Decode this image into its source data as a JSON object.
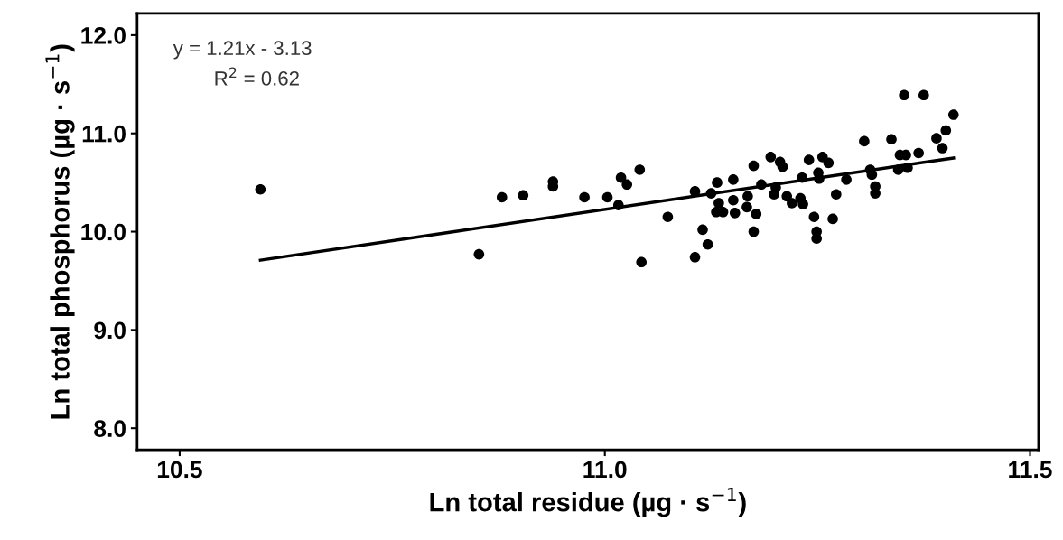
{
  "chart_data": {
    "type": "scatter",
    "xlabel": "Ln total residue (µg · s$^{−1}$)",
    "ylabel": "Ln total phosphorus (µg · s$^{−1}$)",
    "annotations": [
      "y = 1.21x - 3.13",
      "R$^{2}$ = 0.62"
    ],
    "xlim": [
      10.45,
      11.51
    ],
    "ylim": [
      7.78,
      12.22
    ],
    "xticks": [
      {
        "value": 10.5,
        "label": "10.5"
      },
      {
        "value": 11.0,
        "label": "11.0"
      },
      {
        "value": 11.5,
        "label": "11.5"
      }
    ],
    "yticks": [
      {
        "value": 8,
        "label": "8.0"
      },
      {
        "value": 9,
        "label": "9.0"
      },
      {
        "value": 10,
        "label": "10.0"
      },
      {
        "value": 11,
        "label": "11.0"
      },
      {
        "value": 12,
        "label": "12.0"
      }
    ],
    "grid": false,
    "legend": false,
    "marker": "circle",
    "series": [
      {
        "color": "#000000",
        "x": [
          10.595,
          10.852,
          10.879,
          10.904,
          10.939,
          10.939,
          10.976,
          11.003,
          11.016,
          11.019,
          11.026,
          11.041,
          11.043,
          11.074,
          11.106,
          11.115,
          11.121,
          11.106,
          11.132,
          11.151,
          11.175,
          11.125,
          11.134,
          11.131,
          11.139,
          11.153,
          11.151,
          11.168,
          11.167,
          11.175,
          11.352,
          11.375,
          11.41,
          11.401,
          11.39,
          11.397,
          11.305,
          11.337,
          11.347,
          11.354,
          11.369,
          11.345,
          11.356,
          11.312,
          11.314,
          11.318,
          11.318,
          11.195,
          11.206,
          11.209,
          11.184,
          11.199,
          11.214,
          11.22,
          11.23,
          11.233,
          11.178,
          11.24,
          11.232,
          11.251,
          11.252,
          11.256,
          11.263,
          11.284,
          11.272,
          11.246,
          11.268,
          11.249,
          11.249,
          11.201
        ],
        "values": [
          10.43,
          9.77,
          10.35,
          10.37,
          10.51,
          10.46,
          10.35,
          10.35,
          10.27,
          10.55,
          10.48,
          10.63,
          9.69,
          10.15,
          9.74,
          10.02,
          9.87,
          10.41,
          10.5,
          10.53,
          10.67,
          10.39,
          10.29,
          10.2,
          10.2,
          10.19,
          10.32,
          10.36,
          10.25,
          10.0,
          11.39,
          11.39,
          11.19,
          11.03,
          10.95,
          10.85,
          10.92,
          10.94,
          10.78,
          10.78,
          10.8,
          10.63,
          10.65,
          10.63,
          10.58,
          10.46,
          10.39,
          10.76,
          10.71,
          10.66,
          10.48,
          10.38,
          10.36,
          10.29,
          10.34,
          10.28,
          10.18,
          10.73,
          10.55,
          10.6,
          10.54,
          10.76,
          10.7,
          10.53,
          10.38,
          10.15,
          10.13,
          10.0,
          9.93,
          10.45
        ]
      },
      {
        "type": "line",
        "color": "#000000",
        "marker": "none",
        "line_style": "solid",
        "x": [
          10.595,
          11.41
        ],
        "values": [
          9.71,
          10.75
        ]
      }
    ]
  }
}
